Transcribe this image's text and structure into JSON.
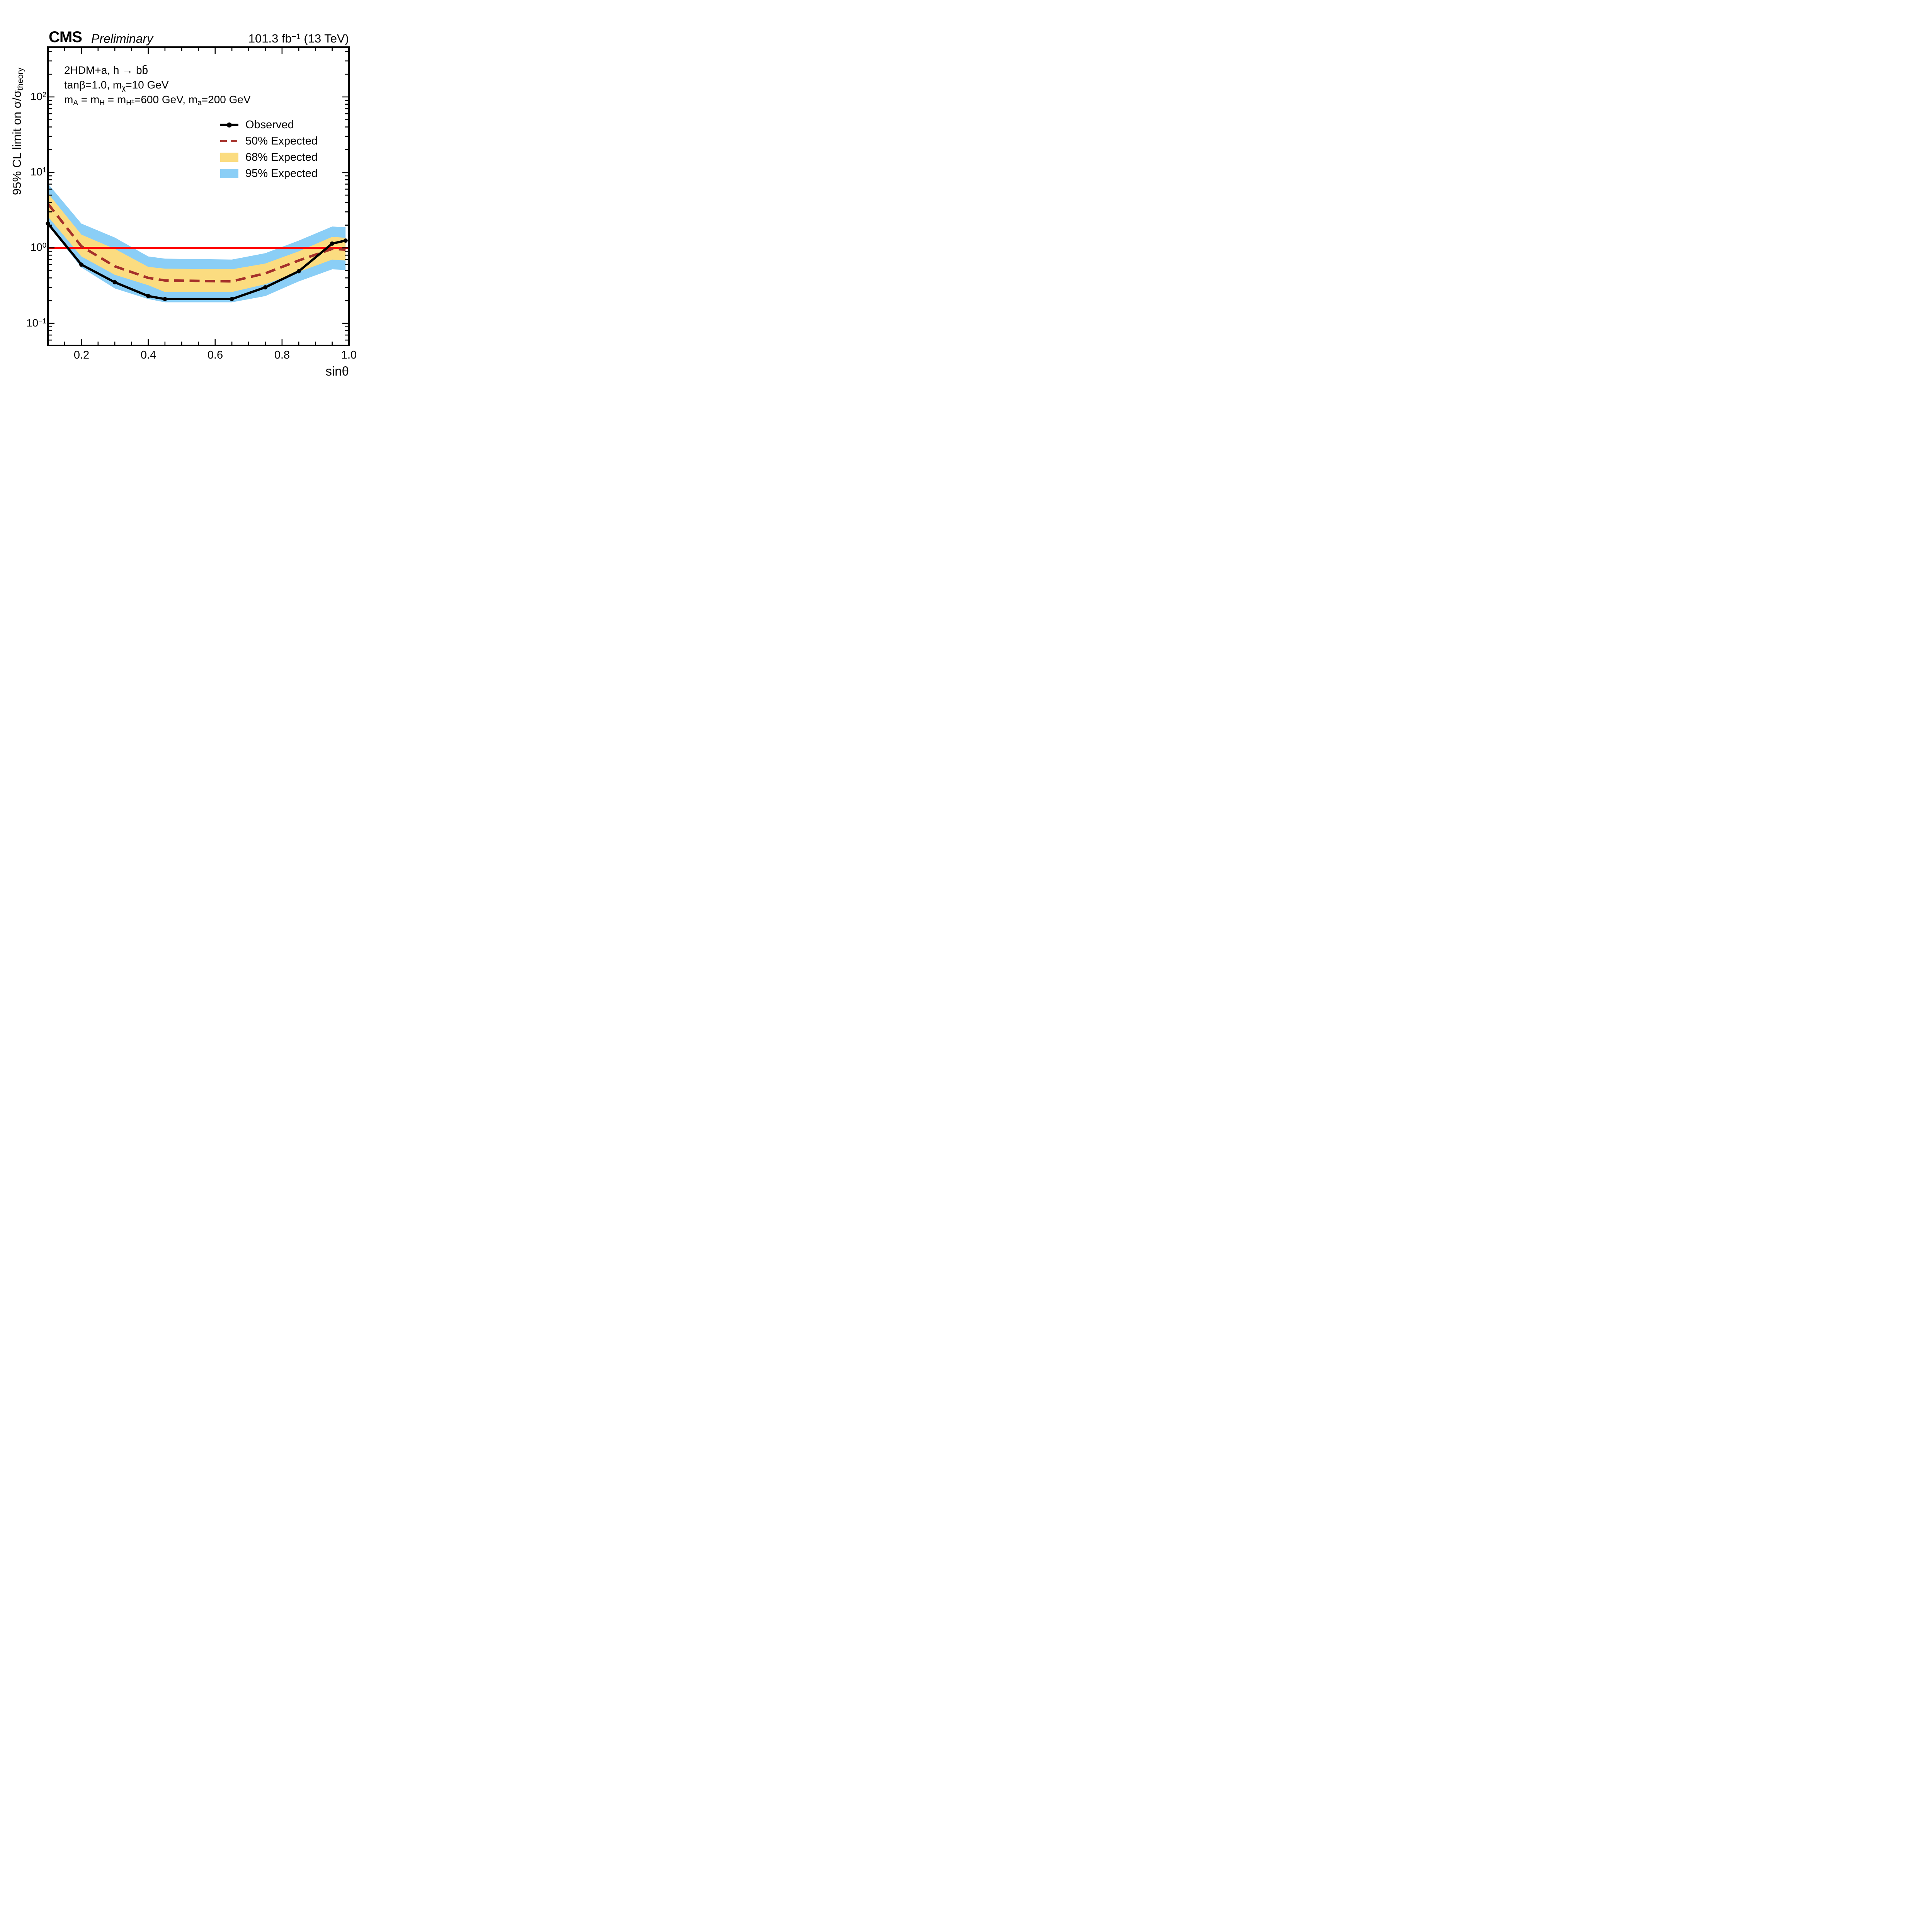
{
  "header": {
    "experiment": "CMS",
    "status": "Preliminary",
    "lumi_parts": [
      {
        "t": "text",
        "v": "101.3 fb"
      },
      {
        "t": "sup",
        "v": "−1"
      },
      {
        "t": "text",
        "v": " (13 TeV)"
      }
    ]
  },
  "annotations": [
    {
      "parts": [
        {
          "t": "text",
          "v": "2HDM+a, h → bb̄"
        }
      ]
    },
    {
      "parts": [
        {
          "t": "text",
          "v": "tanβ=1.0, m"
        },
        {
          "t": "sub",
          "v": "χ"
        },
        {
          "t": "text",
          "v": "=10 GeV"
        }
      ]
    },
    {
      "parts": [
        {
          "t": "text",
          "v": "m"
        },
        {
          "t": "sub",
          "v": "A"
        },
        {
          "t": "text",
          "v": " = m"
        },
        {
          "t": "sub",
          "v": "H"
        },
        {
          "t": "text",
          "v": " = m"
        },
        {
          "t": "sub",
          "v": "H"
        },
        {
          "t": "subsup",
          "v": "±"
        },
        {
          "t": "text",
          "v": "=600 GeV, m"
        },
        {
          "t": "sub",
          "v": "a"
        },
        {
          "t": "text",
          "v": "=200 GeV"
        }
      ]
    }
  ],
  "legend": {
    "items": [
      {
        "label": "Observed",
        "type": "line-marker"
      },
      {
        "label": "50% Expected",
        "type": "dashed-line"
      },
      {
        "label": "68% Expected",
        "type": "band"
      },
      {
        "label": "95% Expected",
        "type": "band"
      }
    ]
  },
  "yaxis": {
    "title_parts": [
      {
        "t": "text",
        "v": "95% CL limit on σ/σ"
      },
      {
        "t": "sub",
        "v": "theory"
      }
    ],
    "tick_labels": [
      {
        "base": "10",
        "exp": "2"
      },
      {
        "base": "10",
        "exp": "1"
      },
      {
        "base": "10",
        "exp": "0"
      },
      {
        "base": "10",
        "exp": "−1"
      }
    ]
  },
  "xaxis": {
    "title": "sinθ",
    "tick_labels": [
      "0.2",
      "0.4",
      "0.6",
      "0.8",
      "1.0"
    ]
  },
  "colors": {
    "observed": "#000000",
    "expected": "#A5302A",
    "band68": "#FBDC80",
    "band95": "#8ACEF6",
    "unity_line": "#FF0000",
    "frame": "#000000"
  },
  "chart_data": {
    "type": "line",
    "title": "2HDM+a, h → bb̄ ; tanβ=1.0, mχ=10 GeV ; mA = mH = mH±=600 GeV, ma=200 GeV",
    "xlabel": "sinθ",
    "ylabel": "95% CL limit on σ/σtheory",
    "yscale": "log",
    "xlim": [
      0.1,
      1.0
    ],
    "ylim": [
      0.051,
      460
    ],
    "grid": false,
    "legend_position": "upper right",
    "x": [
      0.1,
      0.2,
      0.3,
      0.4,
      0.45,
      0.65,
      0.75,
      0.85,
      0.95,
      0.99
    ],
    "series": [
      {
        "name": "Observed",
        "style": "solid-marker",
        "values": [
          2.1,
          0.6,
          0.35,
          0.23,
          0.21,
          0.21,
          0.3,
          0.49,
          1.14,
          1.25
        ]
      },
      {
        "name": "50% Expected",
        "style": "dashed",
        "values": [
          3.85,
          1.05,
          0.57,
          0.4,
          0.37,
          0.36,
          0.46,
          0.68,
          0.97,
          0.95
        ]
      }
    ],
    "bands": [
      {
        "name": "68% Expected",
        "lo": [
          2.6,
          0.77,
          0.44,
          0.32,
          0.26,
          0.26,
          0.33,
          0.48,
          0.7,
          0.68
        ],
        "hi": [
          5.3,
          1.5,
          0.97,
          0.56,
          0.53,
          0.52,
          0.62,
          0.9,
          1.4,
          1.36
        ]
      },
      {
        "name": "95% Expected",
        "lo": [
          2.0,
          0.55,
          0.29,
          0.21,
          0.19,
          0.19,
          0.23,
          0.36,
          0.52,
          0.51
        ],
        "hi": [
          7.1,
          2.1,
          1.37,
          0.77,
          0.72,
          0.7,
          0.85,
          1.25,
          1.92,
          1.88
        ]
      }
    ],
    "reference_line_y": 1.0,
    "x_major_ticks": [
      0.2,
      0.4,
      0.6,
      0.8,
      1.0
    ],
    "x_minor_step": 0.05
  }
}
